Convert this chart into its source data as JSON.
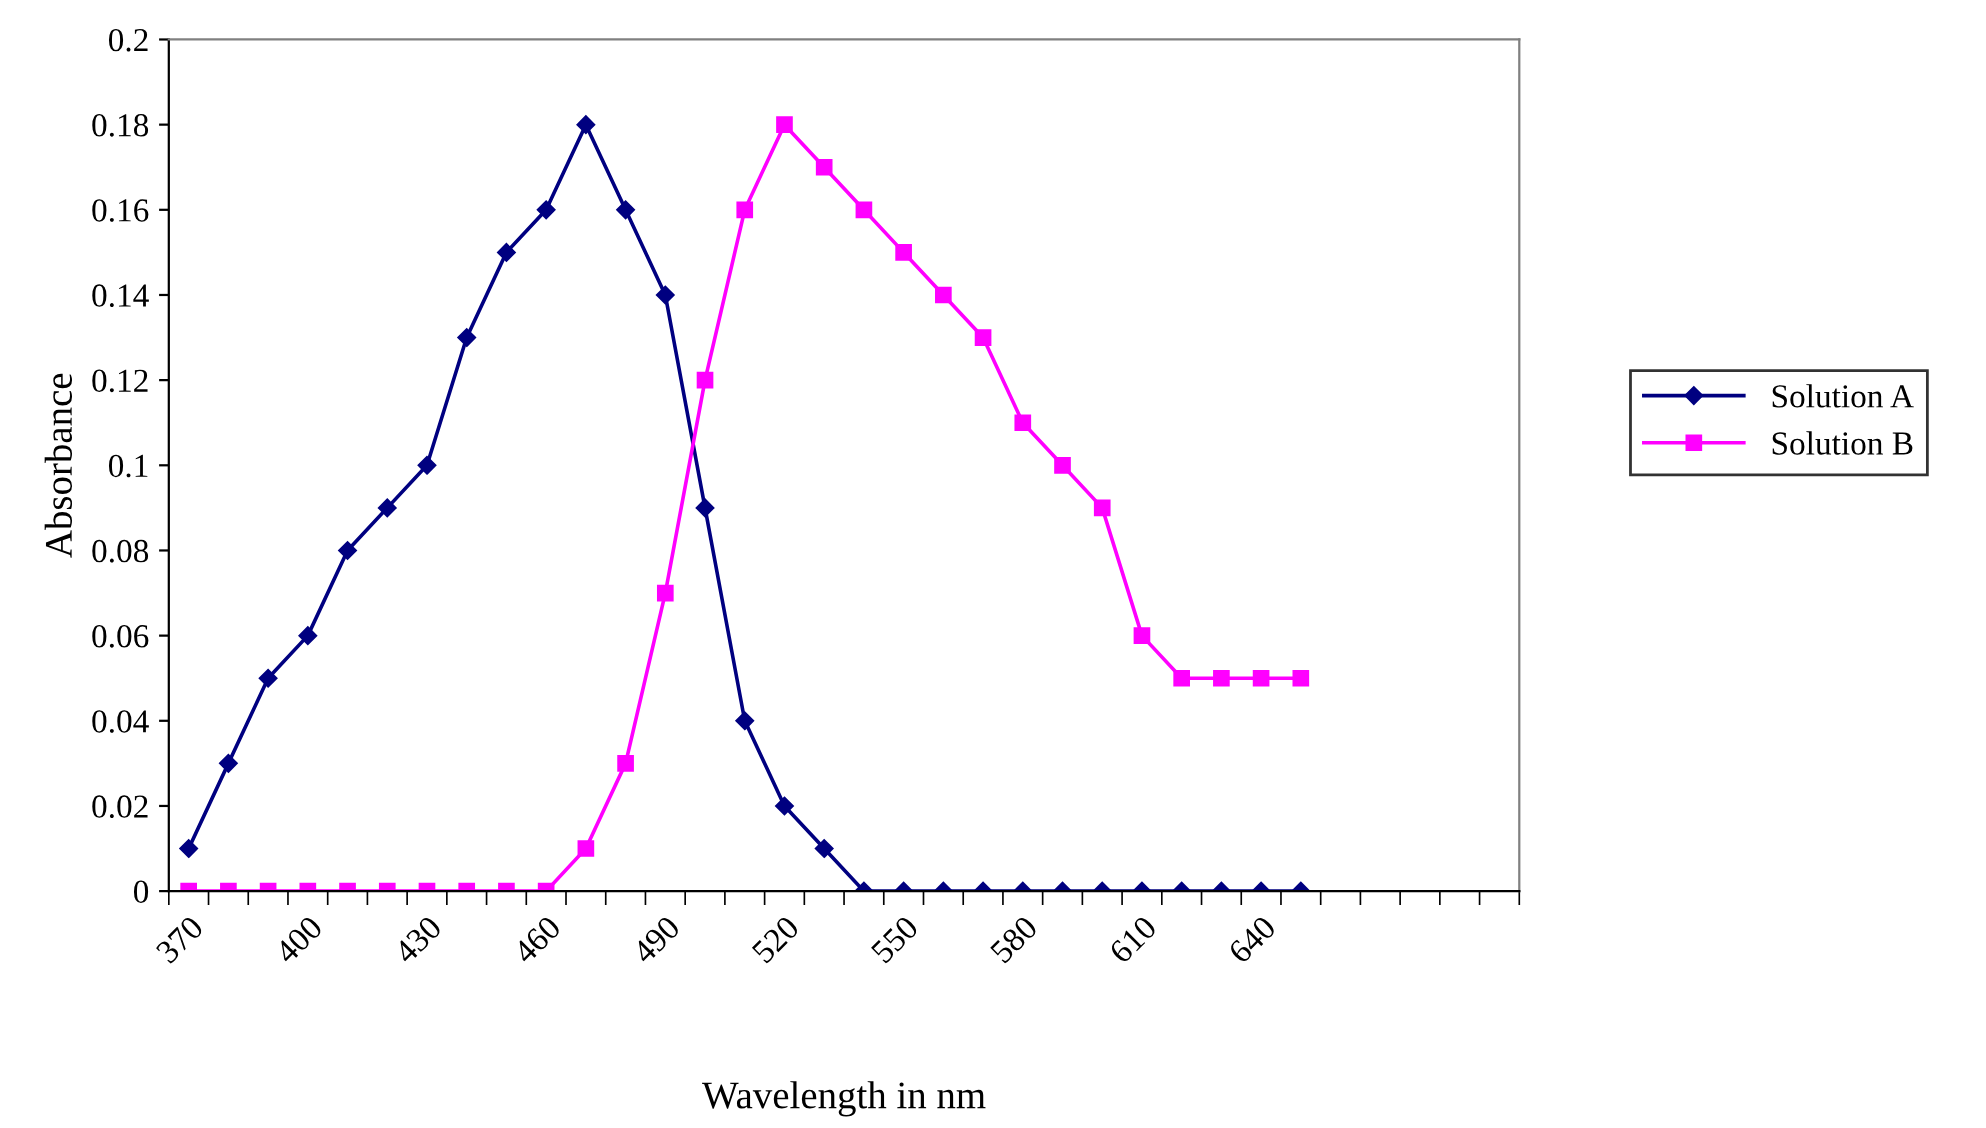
{
  "chart_data": {
    "type": "line",
    "xlabel": "Wavelength in nm",
    "ylabel": "Absorbance",
    "categories": [
      "370",
      null,
      null,
      "400",
      null,
      null,
      "430",
      null,
      null,
      "460",
      null,
      null,
      "490",
      null,
      null,
      "520",
      null,
      null,
      "550",
      null,
      null,
      "580",
      null,
      null,
      "610",
      null,
      null,
      "640",
      null,
      null,
      null,
      null,
      null,
      null
    ],
    "series": [
      {
        "name": "Solution A",
        "color": "#000080",
        "marker": "diamond",
        "values": [
          0.01,
          0.03,
          0.05,
          0.06,
          0.08,
          0.09,
          0.1,
          0.13,
          0.15,
          0.16,
          0.18,
          0.16,
          0.14,
          0.09,
          0.04,
          0.02,
          0.01,
          0,
          0,
          0,
          0,
          0,
          0,
          0,
          0,
          0,
          0,
          0,
          0,
          null,
          null,
          null,
          null,
          null
        ]
      },
      {
        "name": "Solution B",
        "color": "#ff00ff",
        "marker": "square",
        "values": [
          0,
          0,
          0,
          0,
          0,
          0,
          0,
          0,
          0,
          0,
          0.01,
          0.03,
          0.07,
          0.12,
          0.16,
          0.18,
          0.17,
          0.16,
          0.15,
          0.14,
          0.13,
          0.11,
          0.1,
          0.09,
          0.06,
          0.05,
          0.05,
          0.05,
          0.05,
          null,
          null,
          null,
          null,
          null
        ]
      }
    ],
    "ylim": [
      0,
      0.2
    ],
    "yticks": [
      0,
      0.02,
      0.04,
      0.06,
      0.08,
      0.1,
      0.12,
      0.14,
      0.16,
      0.18,
      0.2
    ],
    "grid": false,
    "legend": "right",
    "line_style": "solid"
  }
}
